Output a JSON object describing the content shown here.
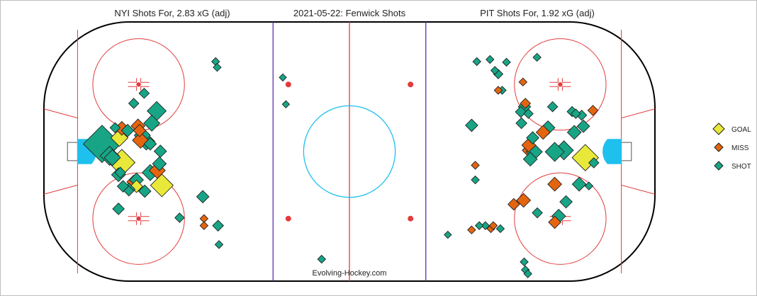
{
  "titles": {
    "left": "NYI Shots For, 2.83 xG (adj)",
    "center": "2021-05-22:  Fenwick Shots",
    "right": "PIT Shots For, 1.92 xG (adj)"
  },
  "watermark": "Evolving-Hockey.com",
  "legend": {
    "placement": "right",
    "items": [
      {
        "label": "GOAL",
        "color": "#e8e83a"
      },
      {
        "label": "MISS",
        "color": "#e5650f"
      },
      {
        "label": "SHOT",
        "color": "#17a585"
      }
    ]
  },
  "colors": {
    "boards": "#000000",
    "red_line": "#e23b3b",
    "blue_line": "#5a2fb0",
    "crease": "#1ec0ee",
    "faceoff": "#e23b3b"
  },
  "chart_data": {
    "type": "scatter",
    "title": "2021-05-22:  Fenwick Shots",
    "description_units": "rink coordinates in feet (x: -100..100, y: -42.5..42.5), size = relative xG",
    "xlim": [
      -100,
      100
    ],
    "ylim": [
      -42.5,
      42.5
    ],
    "series": [
      {
        "name": "NYI",
        "points": [
          {
            "x": -81.0,
            "y": 2.5,
            "type": "SHOT",
            "size": 9
          },
          {
            "x": -74.5,
            "y": -3.6,
            "type": "GOAL",
            "size": 6
          },
          {
            "x": -78.5,
            "y": -1.4,
            "type": "SHOT",
            "size": 4
          },
          {
            "x": -75.3,
            "y": 4.5,
            "type": "GOAL",
            "size": 3.5
          },
          {
            "x": -74.5,
            "y": 7.6,
            "type": "MISS",
            "size": 2.6
          },
          {
            "x": -72.6,
            "y": 6.9,
            "type": "SHOT",
            "size": 2.2
          },
          {
            "x": -77.6,
            "y": -2.0,
            "type": "SHOT",
            "size": 3.2
          },
          {
            "x": -69.2,
            "y": 8.4,
            "type": "MISS",
            "size": 2.6
          },
          {
            "x": -67.8,
            "y": 5.3,
            "type": "SHOT",
            "size": 3.2
          },
          {
            "x": -68.4,
            "y": 3.7,
            "type": "MISS",
            "size": 3.2
          },
          {
            "x": -66.5,
            "y": 3.3,
            "type": "SHOT",
            "size": 3.5
          },
          {
            "x": -64.7,
            "y": 9.3,
            "type": "SHOT",
            "size": 3.2
          },
          {
            "x": -63.1,
            "y": 13.3,
            "type": "SHOT",
            "size": 4
          },
          {
            "x": -65.2,
            "y": 2.5,
            "type": "SHOT",
            "size": 2.2
          },
          {
            "x": -68.7,
            "y": 6.9,
            "type": "MISS",
            "size": 2.2
          },
          {
            "x": -70.6,
            "y": 15.8,
            "type": "SHOT",
            "size": 1.6
          },
          {
            "x": -75.0,
            "y": -6.9,
            "type": "SHOT",
            "size": 1.8
          },
          {
            "x": -75.6,
            "y": -7.6,
            "type": "SHOT",
            "size": 2.6
          },
          {
            "x": -70.6,
            "y": -10.0,
            "type": "MISS",
            "size": 2.6
          },
          {
            "x": -69.7,
            "y": -9.3,
            "type": "SHOT",
            "size": 2.6
          },
          {
            "x": -69.7,
            "y": -11.4,
            "type": "GOAL",
            "size": 2.2
          },
          {
            "x": -67.0,
            "y": -13.0,
            "type": "SHOT",
            "size": 2.2
          },
          {
            "x": -65.2,
            "y": -6.9,
            "type": "SHOT",
            "size": 3.2
          },
          {
            "x": -62.9,
            "y": -6.2,
            "type": "MISS",
            "size": 3.2
          },
          {
            "x": -62.2,
            "y": -4.0,
            "type": "SHOT",
            "size": 2.6
          },
          {
            "x": -61.4,
            "y": -11.1,
            "type": "GOAL",
            "size": 5
          },
          {
            "x": -61.9,
            "y": 0.1,
            "type": "SHOT",
            "size": 2.2
          },
          {
            "x": -76.7,
            "y": 7.8,
            "type": "SHOT",
            "size": 1.6
          },
          {
            "x": -74.1,
            "y": -11.4,
            "type": "SHOT",
            "size": 2.0
          },
          {
            "x": -75.6,
            "y": -18.8,
            "type": "SHOT",
            "size": 2.0
          },
          {
            "x": -67.2,
            "y": 19.1,
            "type": "SHOT",
            "size": 1.6
          },
          {
            "x": -72.2,
            "y": -12.4,
            "type": "SHOT",
            "size": 2.2
          },
          {
            "x": -72.2,
            "y": -12.9,
            "type": "SHOT",
            "size": 1.6
          },
          {
            "x": -55.6,
            "y": -21.7,
            "type": "SHOT",
            "size": 1.4
          },
          {
            "x": -48.0,
            "y": -14.8,
            "type": "SHOT",
            "size": 2.2
          },
          {
            "x": -47.6,
            "y": -22.0,
            "type": "MISS",
            "size": 1.0
          },
          {
            "x": -47.6,
            "y": -24.3,
            "type": "MISS",
            "size": 1.0
          },
          {
            "x": -43.0,
            "y": -24.3,
            "type": "SHOT",
            "size": 1.8
          },
          {
            "x": -42.7,
            "y": -30.5,
            "type": "SHOT",
            "size": 1.0
          },
          {
            "x": -43.8,
            "y": 29.5,
            "type": "SHOT",
            "size": 1.0
          },
          {
            "x": -43.3,
            "y": 27.6,
            "type": "SHOT",
            "size": 1.0
          },
          {
            "x": -21.8,
            "y": 24.3,
            "type": "SHOT",
            "size": 0.8
          },
          {
            "x": -20.8,
            "y": 15.5,
            "type": "SHOT",
            "size": 0.8
          },
          {
            "x": -9.1,
            "y": -35.3,
            "type": "SHOT",
            "size": 1.0
          }
        ]
      },
      {
        "name": "PIT",
        "points": [
          {
            "x": 77.2,
            "y": -2.0,
            "type": "GOAL",
            "size": 6
          },
          {
            "x": 70.2,
            "y": 0.4,
            "type": "SHOT",
            "size": 4
          },
          {
            "x": 67.2,
            "y": -0.1,
            "type": "SHOT",
            "size": 4
          },
          {
            "x": 59.2,
            "y": 0.4,
            "type": "MISS",
            "size": 3.2
          },
          {
            "x": 60.5,
            "y": -0.1,
            "type": "SHOT",
            "size": 3.2
          },
          {
            "x": 59.2,
            "y": -2.5,
            "type": "SHOT",
            "size": 2.6
          },
          {
            "x": 58.7,
            "y": 2.1,
            "type": "MISS",
            "size": 2.6
          },
          {
            "x": 65.0,
            "y": 7.8,
            "type": "SHOT",
            "size": 2.6
          },
          {
            "x": 63.4,
            "y": 6.3,
            "type": "MISS",
            "size": 2.6
          },
          {
            "x": 73.6,
            "y": 6.3,
            "type": "SHOT",
            "size": 2.6
          },
          {
            "x": 67.2,
            "y": -10.7,
            "type": "MISS",
            "size": 2.6
          },
          {
            "x": 75.2,
            "y": -10.7,
            "type": "SHOT",
            "size": 2.6
          },
          {
            "x": 70.9,
            "y": -16.5,
            "type": "SHOT",
            "size": 2.2
          },
          {
            "x": 67.2,
            "y": -23.2,
            "type": "MISS",
            "size": 2.2
          },
          {
            "x": 68.5,
            "y": -21.2,
            "type": "SHOT",
            "size": 2.6
          },
          {
            "x": 61.5,
            "y": -20.1,
            "type": "SHOT",
            "size": 1.6
          },
          {
            "x": 57.0,
            "y": -16.0,
            "type": "MISS",
            "size": 2.6
          },
          {
            "x": 60.0,
            "y": 4.5,
            "type": "SHOT",
            "size": 2.2
          },
          {
            "x": 72.9,
            "y": 13.1,
            "type": "SHOT",
            "size": 1.6
          },
          {
            "x": 74.1,
            "y": 12.4,
            "type": "SHOT",
            "size": 1.4
          },
          {
            "x": 76.0,
            "y": 11.9,
            "type": "SHOT",
            "size": 1.6
          },
          {
            "x": 79.7,
            "y": 13.5,
            "type": "MISS",
            "size": 1.6
          },
          {
            "x": 76.6,
            "y": 8.3,
            "type": "SHOT",
            "size": 2.2
          },
          {
            "x": 80.0,
            "y": -3.7,
            "type": "SHOT",
            "size": 1.6
          },
          {
            "x": 66.5,
            "y": 14.7,
            "type": "SHOT",
            "size": 1.6
          },
          {
            "x": 56.1,
            "y": 13.0,
            "type": "SHOT",
            "size": 1.8
          },
          {
            "x": 57.3,
            "y": 14.7,
            "type": "SHOT",
            "size": 2.2
          },
          {
            "x": 57.6,
            "y": 15.8,
            "type": "MISS",
            "size": 1.6
          },
          {
            "x": 58.6,
            "y": 12.4,
            "type": "SHOT",
            "size": 1.4
          },
          {
            "x": 56.3,
            "y": 9.3,
            "type": "SHOT",
            "size": 1.8
          },
          {
            "x": 40.0,
            "y": 8.6,
            "type": "SHOT",
            "size": 2.2
          },
          {
            "x": 41.7,
            "y": 29.5,
            "type": "SHOT",
            "size": 1.0
          },
          {
            "x": 46.0,
            "y": 30.2,
            "type": "SHOT",
            "size": 1.0
          },
          {
            "x": 47.6,
            "y": 26.6,
            "type": "SHOT",
            "size": 1.0
          },
          {
            "x": 48.7,
            "y": 25.4,
            "type": "SHOT",
            "size": 1.4
          },
          {
            "x": 51.4,
            "y": 29.3,
            "type": "SHOT",
            "size": 1.0
          },
          {
            "x": 56.8,
            "y": 22.8,
            "type": "MISS",
            "size": 1.0
          },
          {
            "x": 50.0,
            "y": 20.1,
            "type": "SHOT",
            "size": 1.0
          },
          {
            "x": 48.7,
            "y": 20.1,
            "type": "MISS",
            "size": 1.0
          },
          {
            "x": 61.4,
            "y": 30.9,
            "type": "SHOT",
            "size": 1.0
          },
          {
            "x": 41.2,
            "y": -4.5,
            "type": "MISS",
            "size": 1.0
          },
          {
            "x": 41.2,
            "y": -9.3,
            "type": "SHOT",
            "size": 1.0
          },
          {
            "x": 53.8,
            "y": -17.3,
            "type": "MISS",
            "size": 2.0
          },
          {
            "x": 44.5,
            "y": -24.3,
            "type": "SHOT",
            "size": 1.0
          },
          {
            "x": 40.0,
            "y": -25.7,
            "type": "MISS",
            "size": 1.0
          },
          {
            "x": 46.3,
            "y": -25.3,
            "type": "MISS",
            "size": 1.0
          },
          {
            "x": 47.1,
            "y": -24.3,
            "type": "MISS",
            "size": 1.0
          },
          {
            "x": 49.4,
            "y": -25.3,
            "type": "SHOT",
            "size": 1.0
          },
          {
            "x": 42.5,
            "y": -24.3,
            "type": "SHOT",
            "size": 1.0
          },
          {
            "x": 32.2,
            "y": -27.3,
            "type": "SHOT",
            "size": 0.8
          },
          {
            "x": 57.2,
            "y": -36.2,
            "type": "SHOT",
            "size": 1.0
          },
          {
            "x": 57.6,
            "y": -38.8,
            "type": "SHOT",
            "size": 1.0
          },
          {
            "x": 58.4,
            "y": -40.1,
            "type": "SHOT",
            "size": 1.0
          },
          {
            "x": 78.4,
            "y": -11.3,
            "type": "SHOT",
            "size": 1.0
          }
        ]
      }
    ]
  }
}
